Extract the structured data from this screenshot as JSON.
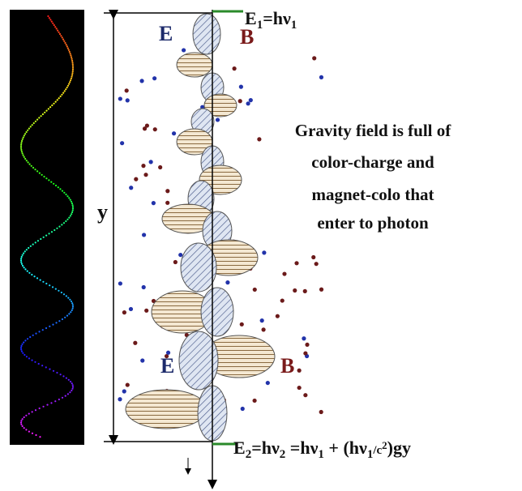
{
  "top_labels": {
    "e": "E",
    "b": "B"
  },
  "energy_top": [
    "E",
    "1",
    "=hν",
    "1"
  ],
  "note": [
    "Gravity field is full of",
    "color-charge and",
    "magnet-colo that",
    "enter to photon"
  ],
  "y_label": "y",
  "bottom_labels": {
    "e": "E",
    "b": "B"
  },
  "energy_bottom": [
    "E",
    "2",
    "=hν",
    "2",
    " =hν",
    "1",
    " + (hν",
    "1",
    "/c",
    "2",
    ")gy"
  ]
}
